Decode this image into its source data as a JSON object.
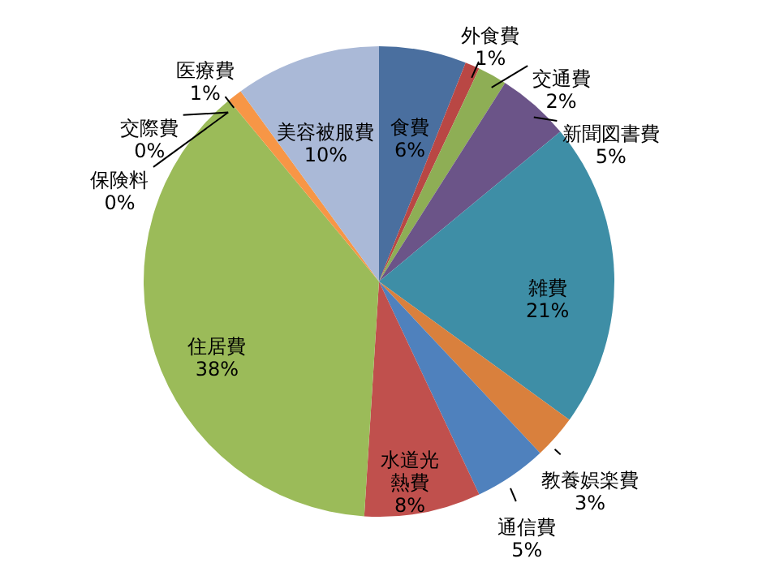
{
  "chart_data": {
    "type": "pie",
    "categories": [
      "食費",
      "外食費",
      "交通費",
      "新聞図書費",
      "雑費",
      "教養娯楽費",
      "通信費",
      "水道光熱費",
      "住居費",
      "保険料",
      "交際費",
      "医療費",
      "美容被服費"
    ],
    "values": [
      6,
      1,
      2,
      5,
      21,
      3,
      5,
      8,
      38,
      0,
      0,
      1,
      10
    ],
    "value_labels": [
      "6%",
      "1%",
      "2%",
      "5%",
      "21%",
      "3%",
      "5%",
      "8%",
      "38%",
      "0%",
      "0%",
      "1%",
      "10%"
    ],
    "colors": [
      "#4a6f9f",
      "#b94744",
      "#8eae55",
      "#6b5488",
      "#3e8ea6",
      "#d9803d",
      "#4f81bd",
      "#c0504d",
      "#9bbb59",
      "#8064a2",
      "#4bacc6",
      "#f79646",
      "#aab9d7"
    ]
  }
}
